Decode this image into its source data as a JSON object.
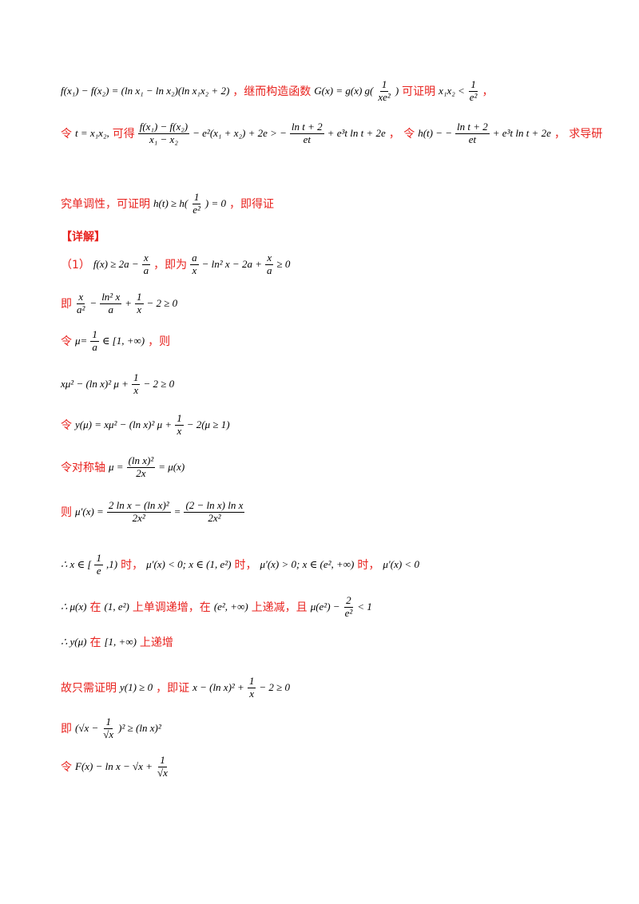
{
  "lines": [
    {
      "parts": [
        {
          "t": "m",
          "v": "f(x₁) − f(x₂) = (ln x₁ − ln x₂)(ln x₁x₂ + 2)"
        },
        {
          "t": "r",
          "v": "，继而构造函数"
        },
        {
          "t": "m",
          "v": "G(x) = g(x)   g("
        },
        {
          "t": "f",
          "n": "1",
          "d": "xe²"
        },
        {
          "t": "m",
          "v": ")"
        },
        {
          "t": "r",
          "v": "可证明"
        },
        {
          "t": "m",
          "v": "x₁x₂ <"
        },
        {
          "t": "f",
          "n": "1",
          "d": "e²"
        },
        {
          "t": "r",
          "v": "，"
        }
      ]
    },
    {
      "parts": [
        {
          "t": "r",
          "v": "令"
        },
        {
          "t": "m",
          "v": "t = x₁x₂,"
        },
        {
          "t": "r",
          "v": "可得"
        },
        {
          "t": "f",
          "n": "f(x₁) − f(x₂)",
          "d": "x₁ − x₂"
        },
        {
          "t": "m",
          "v": "− e²(x₁ + x₂) + 2e > −"
        },
        {
          "t": "f",
          "n": "ln t + 2",
          "d": "et"
        },
        {
          "t": "m",
          "v": "+ e³t ln t + 2e"
        },
        {
          "t": "r",
          "v": "， 令"
        },
        {
          "t": "m",
          "v": "h(t) − −"
        },
        {
          "t": "f",
          "n": "ln t + 2",
          "d": "et"
        },
        {
          "t": "m",
          "v": "+ e³t ln t + 2e"
        },
        {
          "t": "r",
          "v": "， 求导研"
        }
      ]
    },
    {
      "parts": [
        {
          "t": "r",
          "v": "究单调性，可证明"
        },
        {
          "t": "m",
          "v": "h(t) ≥ h("
        },
        {
          "t": "f",
          "n": "1",
          "d": "e²"
        },
        {
          "t": "m",
          "v": ") = 0"
        },
        {
          "t": "r",
          "v": "，即得证"
        }
      ]
    },
    {
      "parts": [
        {
          "t": "r",
          "v": "【详解】"
        }
      ]
    },
    {
      "parts": [
        {
          "t": "r",
          "v": "（1）"
        },
        {
          "t": "m",
          "v": "f(x) ≥ 2a −"
        },
        {
          "t": "f",
          "n": "x",
          "d": "a"
        },
        {
          "t": "r",
          "v": "，即为"
        },
        {
          "t": "f",
          "n": "a",
          "d": "x"
        },
        {
          "t": "m",
          "v": "− ln² x − 2a +"
        },
        {
          "t": "f",
          "n": "x",
          "d": "a"
        },
        {
          "t": "m",
          "v": "≥ 0"
        }
      ]
    },
    {
      "parts": [
        {
          "t": "r",
          "v": "即"
        },
        {
          "t": "f",
          "n": "x",
          "d": "a²"
        },
        {
          "t": "m",
          "v": "−"
        },
        {
          "t": "f",
          "n": "ln² x",
          "d": "a"
        },
        {
          "t": "m",
          "v": "+"
        },
        {
          "t": "f",
          "n": "1",
          "d": "x"
        },
        {
          "t": "m",
          "v": "− 2 ≥ 0"
        }
      ]
    },
    {
      "parts": [
        {
          "t": "r",
          "v": "令"
        },
        {
          "t": "m",
          "v": "μ="
        },
        {
          "t": "f",
          "n": "1",
          "d": "a"
        },
        {
          "t": "m",
          "v": "∈ [1, +∞)"
        },
        {
          "t": "r",
          "v": "，则"
        }
      ]
    },
    {
      "parts": [
        {
          "t": "m",
          "v": "xμ² − (ln x)² μ +"
        },
        {
          "t": "f",
          "n": "1",
          "d": "x"
        },
        {
          "t": "m",
          "v": "− 2 ≥ 0"
        }
      ]
    },
    {
      "parts": [
        {
          "t": "r",
          "v": "令"
        },
        {
          "t": "m",
          "v": "y(μ) = xμ² − (ln x)² μ +"
        },
        {
          "t": "f",
          "n": "1",
          "d": "x"
        },
        {
          "t": "m",
          "v": "− 2(μ ≥ 1)"
        }
      ]
    },
    {
      "parts": [
        {
          "t": "r",
          "v": "令对称轴"
        },
        {
          "t": "m",
          "v": "μ ="
        },
        {
          "t": "f",
          "n": "(ln x)²",
          "d": "2x"
        },
        {
          "t": "m",
          "v": "= μ(x)"
        }
      ]
    },
    {
      "parts": [
        {
          "t": "r",
          "v": "则"
        },
        {
          "t": "m",
          "v": "μ′(x) ="
        },
        {
          "t": "f",
          "n": "2 ln x − (ln x)²",
          "d": "2x²"
        },
        {
          "t": "m",
          "v": "="
        },
        {
          "t": "f",
          "n": "(2 − ln x) ln x",
          "d": "2x²"
        }
      ]
    },
    {
      "parts": [
        {
          "t": "m",
          "v": "∴ x ∈ ["
        },
        {
          "t": "f",
          "n": "1",
          "d": "e"
        },
        {
          "t": "m",
          "v": ",1)"
        },
        {
          "t": "r",
          "v": "时，"
        },
        {
          "t": "m",
          "v": "μ′(x) < 0;   x ∈ (1, e²)"
        },
        {
          "t": "r",
          "v": "时，"
        },
        {
          "t": "m",
          "v": "μ′(x) > 0;   x ∈ (e², +∞)"
        },
        {
          "t": "r",
          "v": "时，"
        },
        {
          "t": "m",
          "v": "μ′(x) < 0"
        }
      ]
    },
    {
      "parts": [
        {
          "t": "m",
          "v": "∴ μ(x)"
        },
        {
          "t": "r",
          "v": "在"
        },
        {
          "t": "m",
          "v": "(1, e²)"
        },
        {
          "t": "r",
          "v": "上单调递增，在"
        },
        {
          "t": "m",
          "v": "(e², +∞)"
        },
        {
          "t": "r",
          "v": "上递减，且"
        },
        {
          "t": "m",
          "v": "μ(e²) −"
        },
        {
          "t": "f",
          "n": "2",
          "d": "e²"
        },
        {
          "t": "m",
          "v": "< 1"
        }
      ]
    },
    {
      "parts": [
        {
          "t": "m",
          "v": "∴ y(μ)"
        },
        {
          "t": "r",
          "v": "在"
        },
        {
          "t": "m",
          "v": "[1, +∞)"
        },
        {
          "t": "r",
          "v": "上递增"
        }
      ]
    },
    {
      "parts": [
        {
          "t": "r",
          "v": "故只需证明"
        },
        {
          "t": "m",
          "v": "y(1) ≥ 0"
        },
        {
          "t": "r",
          "v": "，即证"
        },
        {
          "t": "m",
          "v": "x − (ln x)² +"
        },
        {
          "t": "f",
          "n": "1",
          "d": "x"
        },
        {
          "t": "m",
          "v": "− 2 ≥ 0"
        }
      ]
    },
    {
      "parts": [
        {
          "t": "r",
          "v": "即"
        },
        {
          "t": "m",
          "v": "(√x −"
        },
        {
          "t": "f",
          "n": "1",
          "d": "√x"
        },
        {
          "t": "m",
          "v": ")² ≥ (ln x)²"
        }
      ]
    },
    {
      "parts": [
        {
          "t": "r",
          "v": "令"
        },
        {
          "t": "m",
          "v": "F(x) − ln x − √x +"
        },
        {
          "t": "f",
          "n": "1",
          "d": "√x"
        }
      ]
    }
  ]
}
